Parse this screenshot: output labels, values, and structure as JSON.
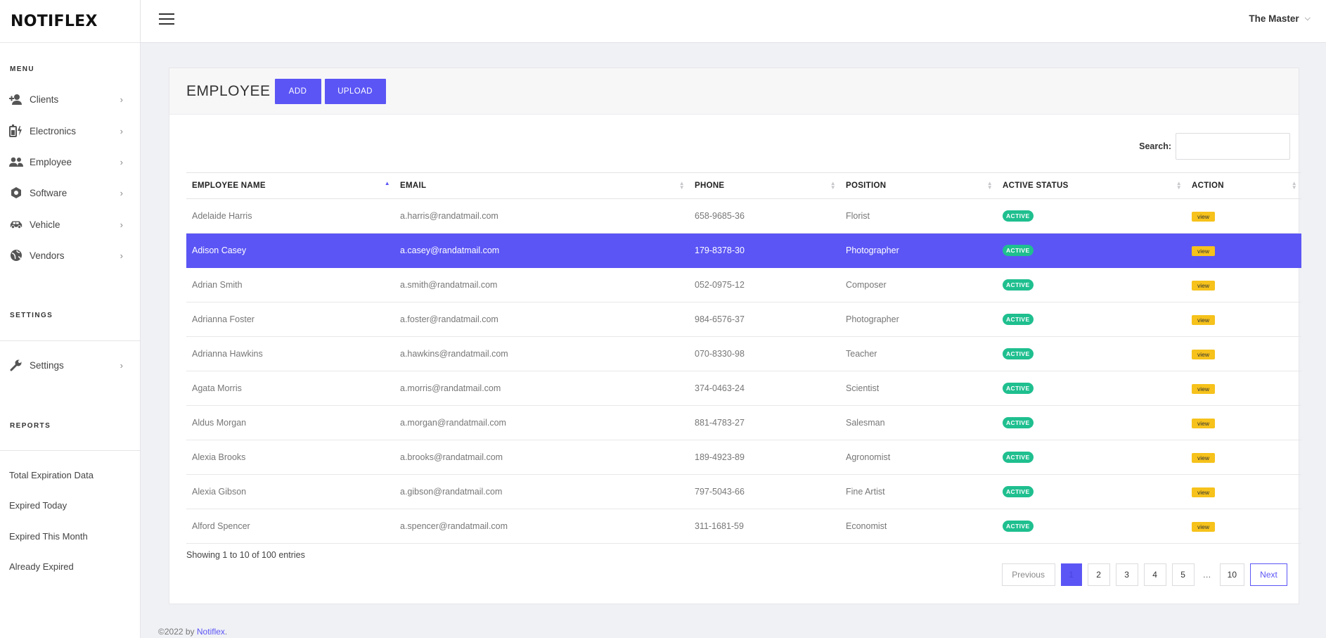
{
  "brand": "NOTIFLEX",
  "sidebar": {
    "menu_title": "MENU",
    "items": [
      {
        "label": "Clients",
        "icon": "user-plus-icon"
      },
      {
        "label": "Electronics",
        "icon": "device-charging-icon"
      },
      {
        "label": "Employee",
        "icon": "users-icon"
      },
      {
        "label": "Software",
        "icon": "hexagon-icon"
      },
      {
        "label": "Vehicle",
        "icon": "car-icon"
      },
      {
        "label": "Vendors",
        "icon": "globe-icon"
      }
    ],
    "settings_title": "SETTINGS",
    "settings_item": {
      "label": "Settings",
      "icon": "wrench-icon"
    },
    "reports_title": "REPORTS",
    "reports": [
      "Total Expiration Data",
      "Expired Today",
      "Expired This Month",
      "Already Expired"
    ]
  },
  "topbar": {
    "user_name": "The Master"
  },
  "page": {
    "title": "EMPLOYEE",
    "add_label": "ADD",
    "upload_label": "UPLOAD",
    "search_label": "Search:",
    "search_value": ""
  },
  "table": {
    "headers": [
      "EMPLOYEE NAME",
      "EMAIL",
      "PHONE",
      "POSITION",
      "ACTIVE STATUS",
      "ACTION"
    ],
    "rows": [
      {
        "name": "Adelaide Harris",
        "email": "a.harris@randatmail.com",
        "phone": "658-9685-36",
        "position": "Florist",
        "status": "ACTIVE",
        "action": "view"
      },
      {
        "name": "Adison Casey",
        "email": "a.casey@randatmail.com",
        "phone": "179-8378-30",
        "position": "Photographer",
        "status": "ACTIVE",
        "action": "view"
      },
      {
        "name": "Adrian Smith",
        "email": "a.smith@randatmail.com",
        "phone": "052-0975-12",
        "position": "Composer",
        "status": "ACTIVE",
        "action": "view"
      },
      {
        "name": "Adrianna Foster",
        "email": "a.foster@randatmail.com",
        "phone": "984-6576-37",
        "position": "Photographer",
        "status": "ACTIVE",
        "action": "view"
      },
      {
        "name": "Adrianna Hawkins",
        "email": "a.hawkins@randatmail.com",
        "phone": "070-8330-98",
        "position": "Teacher",
        "status": "ACTIVE",
        "action": "view"
      },
      {
        "name": "Agata Morris",
        "email": "a.morris@randatmail.com",
        "phone": "374-0463-24",
        "position": "Scientist",
        "status": "ACTIVE",
        "action": "view"
      },
      {
        "name": "Aldus Morgan",
        "email": "a.morgan@randatmail.com",
        "phone": "881-4783-27",
        "position": "Salesman",
        "status": "ACTIVE",
        "action": "view"
      },
      {
        "name": "Alexia Brooks",
        "email": "a.brooks@randatmail.com",
        "phone": "189-4923-89",
        "position": "Agronomist",
        "status": "ACTIVE",
        "action": "view"
      },
      {
        "name": "Alexia Gibson",
        "email": "a.gibson@randatmail.com",
        "phone": "797-5043-66",
        "position": "Fine Artist",
        "status": "ACTIVE",
        "action": "view"
      },
      {
        "name": "Alford Spencer",
        "email": "a.spencer@randatmail.com",
        "phone": "311-1681-59",
        "position": "Economist",
        "status": "ACTIVE",
        "action": "view"
      }
    ],
    "selected_row": 1,
    "showing": "Showing 1 to 10 of 100 entries"
  },
  "pagination": {
    "previous": "Previous",
    "pages": [
      "1",
      "2",
      "3",
      "4",
      "5"
    ],
    "ellipsis": "…",
    "last": "10",
    "next": "Next",
    "current": "1"
  },
  "footer": {
    "copyright": "©2022 by ",
    "link": "Notiflex",
    "suffix": "."
  },
  "colors": {
    "accent": "#5b55f5",
    "active_badge": "#1fbf8f",
    "view_badge": "#f6c21b"
  }
}
